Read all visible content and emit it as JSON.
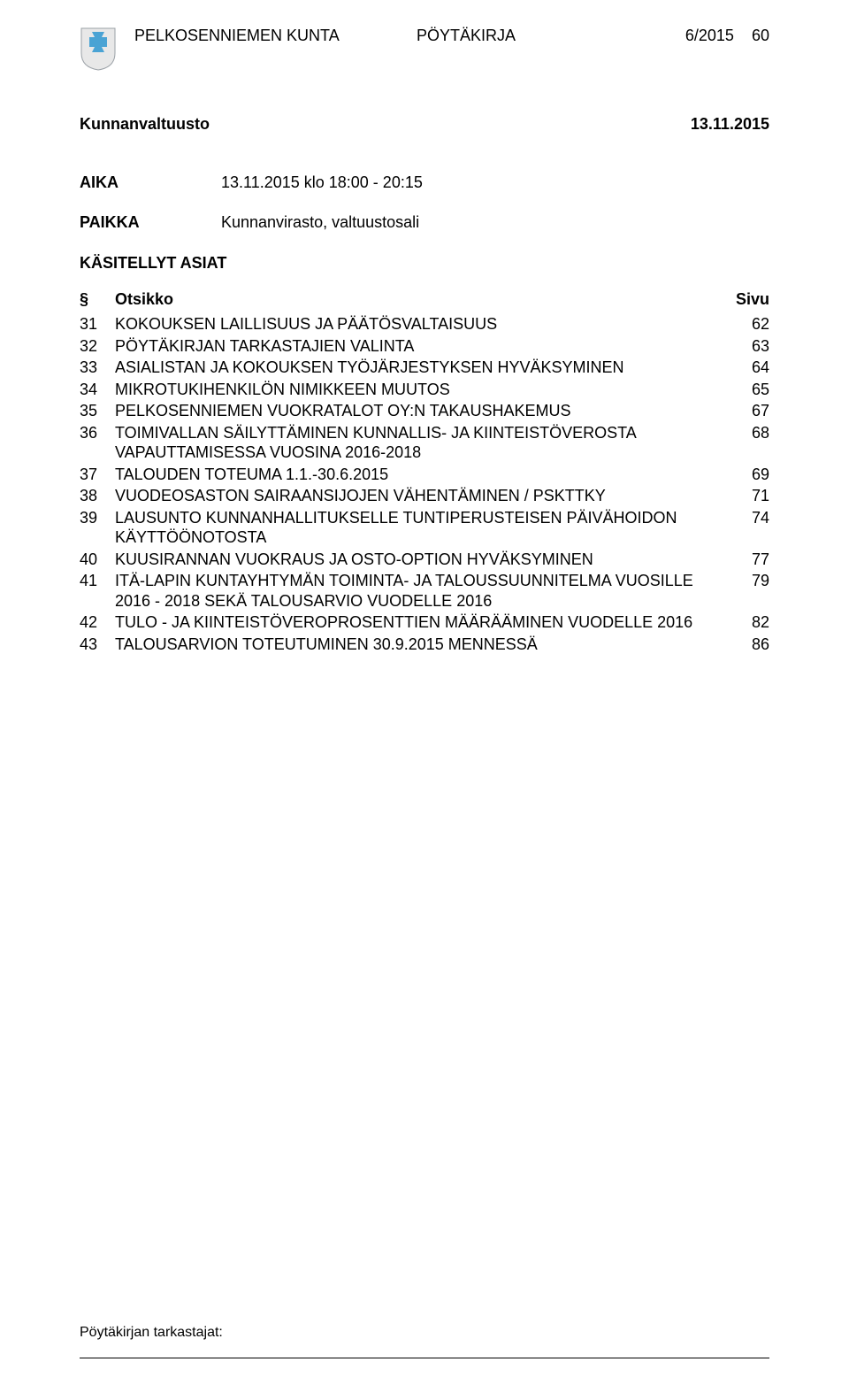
{
  "header": {
    "org": "PELKOSENNIEMEN KUNTA",
    "doc_type": "PÖYTÄKIRJA",
    "issue": "6/2015",
    "page_no": "60"
  },
  "logo": {
    "shield_fill": "#e8e8e8",
    "shield_stroke": "#9aa0a6",
    "cross_color": "#4aa3d4"
  },
  "meeting": {
    "body": "Kunnanvaltuusto",
    "date": "13.11.2015"
  },
  "meta": {
    "time_label": "AIKA",
    "time_value": "13.11.2015 klo 18:00 - 20:15",
    "place_label": "PAIKKA",
    "place_value": "Kunnanvirasto, valtuustosali"
  },
  "toc": {
    "section_title": "KÄSITELLYT ASIAT",
    "col_sec": "§",
    "col_title": "Otsikko",
    "col_page": "Sivu",
    "items": [
      {
        "num": "31",
        "title": "KOKOUKSEN LAILLISUUS JA PÄÄTÖSVALTAISUUS",
        "page": "62"
      },
      {
        "num": "32",
        "title": "PÖYTÄKIRJAN TARKASTAJIEN VALINTA",
        "page": "63"
      },
      {
        "num": "33",
        "title": "ASIALISTAN JA KOKOUKSEN TYÖJÄRJESTYKSEN HYVÄKSYMINEN",
        "page": "64"
      },
      {
        "num": "34",
        "title": "MIKROTUKIHENKILÖN NIMIKKEEN MUUTOS",
        "page": "65"
      },
      {
        "num": "35",
        "title": "PELKOSENNIEMEN VUOKRATALOT OY:N TAKAUSHAKEMUS",
        "page": "67"
      },
      {
        "num": "36",
        "title": "TOIMIVALLAN SÄILYTTÄMINEN KUNNALLIS- JA KIINTEISTÖVEROSTA VAPAUTTAMISESSA VUOSINA 2016-2018",
        "page": "68"
      },
      {
        "num": "37",
        "title": "TALOUDEN TOTEUMA 1.1.-30.6.2015",
        "page": "69"
      },
      {
        "num": "38",
        "title": "VUODEOSASTON SAIRAANSIJOJEN VÄHENTÄMINEN / PSKTTKY",
        "page": "71"
      },
      {
        "num": "39",
        "title": "LAUSUNTO KUNNANHALLITUKSELLE TUNTIPERUSTEISEN PÄIVÄHOIDON KÄYTTÖÖNOTOSTA",
        "page": "74"
      },
      {
        "num": "40",
        "title": "KUUSIRANNAN VUOKRAUS JA OSTO-OPTION HYVÄKSYMINEN",
        "page": "77"
      },
      {
        "num": "41",
        "title": "ITÄ-LAPIN KUNTAYHTYMÄN TOIMINTA- JA TALOUSSUUNNITELMA VUOSILLE 2016 - 2018 SEKÄ TALOUSARVIO VUODELLE 2016",
        "page": "79"
      },
      {
        "num": "42",
        "title": "TULO - JA KIINTEISTÖVEROPROSENTTIEN MÄÄRÄÄMINEN VUODELLE 2016",
        "page": "82"
      },
      {
        "num": "43",
        "title": "TALOUSARVION TOTEUTUMINEN 30.9.2015 MENNESSÄ",
        "page": "86"
      }
    ]
  },
  "footer": {
    "text": "Pöytäkirjan tarkastajat:"
  }
}
